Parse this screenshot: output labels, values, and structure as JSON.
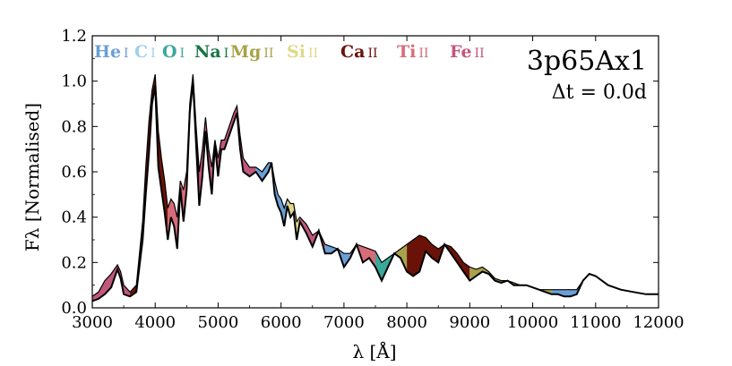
{
  "chart_data": {
    "type": "area",
    "xlabel": "λ [Å]",
    "ylabel": "Fλ [Normalised]",
    "xlim": [
      3000,
      12000
    ],
    "ylim": [
      0.0,
      1.2
    ],
    "xticks": [
      3000,
      4000,
      5000,
      6000,
      7000,
      8000,
      9000,
      10000,
      11000,
      12000
    ],
    "yticks": [
      0.0,
      0.2,
      0.4,
      0.6,
      0.8,
      1.0,
      1.2
    ],
    "xtick_labels": [
      "3000",
      "4000",
      "5000",
      "6000",
      "7000",
      "8000",
      "9000",
      "10000",
      "11000",
      "12000"
    ],
    "ytick_labels": [
      "0.0",
      "0.2",
      "0.4",
      "0.6",
      "0.8",
      "1.0",
      "1.2"
    ],
    "grid": false,
    "model_label": "3p65Ax1",
    "time_label": "Δt = 0.0d",
    "legend": [
      {
        "element": "He",
        "ion": "I",
        "color": "#6a9fd6"
      },
      {
        "element": "C",
        "ion": "I",
        "color": "#9fd0ee"
      },
      {
        "element": "O",
        "ion": "I",
        "color": "#3aa89a"
      },
      {
        "element": "Na",
        "ion": "I",
        "color": "#177544"
      },
      {
        "element": "Mg",
        "ion": "II",
        "color": "#a8a24a"
      },
      {
        "element": "Si",
        "ion": "II",
        "color": "#e0d88a"
      },
      {
        "element": "Ca",
        "ion": "II",
        "color": "#6b1208"
      },
      {
        "element": "Ti",
        "ion": "II",
        "color": "#d86b78"
      },
      {
        "element": "Fe",
        "ion": "II",
        "color": "#c0577c"
      }
    ],
    "spectrum": {
      "x": [
        3000,
        3100,
        3200,
        3300,
        3400,
        3450,
        3500,
        3600,
        3700,
        3800,
        3850,
        3900,
        3950,
        4000,
        4050,
        4100,
        4150,
        4200,
        4250,
        4300,
        4350,
        4400,
        4450,
        4500,
        4550,
        4600,
        4650,
        4700,
        4750,
        4800,
        4850,
        4900,
        4950,
        5000,
        5050,
        5100,
        5150,
        5200,
        5250,
        5300,
        5350,
        5400,
        5500,
        5600,
        5700,
        5800,
        5850,
        5900,
        5950,
        6000,
        6050,
        6100,
        6150,
        6200,
        6250,
        6300,
        6400,
        6500,
        6600,
        6700,
        6800,
        6900,
        7000,
        7100,
        7200,
        7300,
        7400,
        7500,
        7600,
        7700,
        7800,
        7900,
        8000,
        8100,
        8200,
        8300,
        8400,
        8500,
        8600,
        8700,
        8800,
        8900,
        9000,
        9100,
        9200,
        9300,
        9400,
        9500,
        9600,
        9700,
        9800,
        9900,
        10000,
        10100,
        10200,
        10300,
        10400,
        10500,
        10600,
        10700,
        10800,
        10900,
        11000,
        11200,
        11400,
        11600,
        11800,
        12000
      ],
      "y": [
        0.03,
        0.04,
        0.06,
        0.09,
        0.17,
        0.13,
        0.06,
        0.05,
        0.07,
        0.3,
        0.5,
        0.68,
        0.9,
        0.98,
        0.62,
        0.52,
        0.42,
        0.3,
        0.4,
        0.36,
        0.26,
        0.53,
        0.38,
        0.52,
        0.86,
        1.0,
        0.72,
        0.45,
        0.58,
        0.78,
        0.62,
        0.5,
        0.72,
        0.58,
        0.7,
        0.7,
        0.74,
        0.78,
        0.82,
        0.86,
        0.7,
        0.6,
        0.58,
        0.6,
        0.56,
        0.6,
        0.64,
        0.5,
        0.45,
        0.42,
        0.36,
        0.45,
        0.4,
        0.42,
        0.3,
        0.38,
        0.33,
        0.27,
        0.34,
        0.24,
        0.24,
        0.26,
        0.18,
        0.22,
        0.28,
        0.2,
        0.22,
        0.18,
        0.12,
        0.18,
        0.24,
        0.22,
        0.16,
        0.14,
        0.16,
        0.25,
        0.22,
        0.2,
        0.28,
        0.24,
        0.2,
        0.16,
        0.12,
        0.14,
        0.16,
        0.15,
        0.12,
        0.11,
        0.12,
        0.1,
        0.1,
        0.1,
        0.09,
        0.08,
        0.07,
        0.06,
        0.06,
        0.05,
        0.05,
        0.06,
        0.12,
        0.15,
        0.14,
        0.1,
        0.08,
        0.07,
        0.06,
        0.06
      ]
    },
    "no_ion_spectrum": {
      "x": [
        3000,
        3100,
        3200,
        3300,
        3400,
        3450,
        3500,
        3600,
        3700,
        3800,
        3850,
        3900,
        3950,
        4000,
        4050,
        4100,
        4150,
        4200,
        4250,
        4300,
        4350,
        4400,
        4450,
        4500,
        4550,
        4600,
        4650,
        4700,
        4750,
        4800,
        4850,
        4900,
        4950,
        5000,
        5050,
        5100,
        5150,
        5200,
        5250,
        5300,
        5350,
        5400,
        5500,
        5600,
        5700,
        5800,
        5850,
        5900,
        5950,
        6000,
        6050,
        6100,
        6150,
        6200,
        6250,
        6300,
        6400,
        6500,
        6600,
        6700,
        6800,
        6900,
        7000,
        7100,
        7200,
        7300,
        7400,
        7500,
        7600,
        7700,
        7800,
        7900,
        8000,
        8100,
        8200,
        8300,
        8400,
        8500,
        8600,
        8700,
        8800,
        8900,
        9000,
        9100,
        9200,
        9300,
        9400,
        9500,
        9600,
        9700,
        9800,
        9900,
        10000,
        10100,
        10200,
        10300,
        10400,
        10500,
        10600,
        10700,
        10800,
        10900,
        11000,
        11200,
        11400,
        11600,
        11800,
        12000
      ],
      "y": [
        0.05,
        0.07,
        0.12,
        0.15,
        0.19,
        0.16,
        0.1,
        0.07,
        0.1,
        0.38,
        0.62,
        0.82,
        0.96,
        1.03,
        0.78,
        0.66,
        0.56,
        0.44,
        0.48,
        0.46,
        0.4,
        0.56,
        0.52,
        0.6,
        0.9,
        1.03,
        0.8,
        0.6,
        0.7,
        0.84,
        0.7,
        0.62,
        0.74,
        0.66,
        0.74,
        0.74,
        0.78,
        0.82,
        0.86,
        0.89,
        0.76,
        0.66,
        0.62,
        0.62,
        0.6,
        0.64,
        0.64,
        0.56,
        0.5,
        0.48,
        0.44,
        0.48,
        0.46,
        0.46,
        0.38,
        0.4,
        0.37,
        0.32,
        0.34,
        0.28,
        0.27,
        0.26,
        0.24,
        0.24,
        0.28,
        0.27,
        0.26,
        0.25,
        0.2,
        0.22,
        0.24,
        0.26,
        0.28,
        0.3,
        0.32,
        0.31,
        0.28,
        0.26,
        0.28,
        0.27,
        0.24,
        0.2,
        0.18,
        0.17,
        0.18,
        0.16,
        0.13,
        0.12,
        0.12,
        0.11,
        0.1,
        0.1,
        0.09,
        0.08,
        0.08,
        0.08,
        0.08,
        0.08,
        0.08,
        0.08,
        0.12,
        0.15,
        0.14,
        0.1,
        0.08,
        0.07,
        0.06,
        0.06
      ]
    },
    "bands": [
      {
        "ion": "Fe II",
        "color": "#c0577c",
        "range": [
          3000,
          3600
        ]
      },
      {
        "ion": "Ca II",
        "color": "#6b1208",
        "range": [
          3600,
          4200
        ]
      },
      {
        "ion": "Ti II",
        "color": "#d86b78",
        "range": [
          4200,
          4500
        ]
      },
      {
        "ion": "Ca II",
        "color": "#6b1208",
        "range": [
          4500,
          4700
        ]
      },
      {
        "ion": "Fe II",
        "color": "#c0577c",
        "range": [
          4700,
          5600
        ]
      },
      {
        "ion": "He I",
        "color": "#6a9fd6",
        "range": [
          5600,
          6100
        ]
      },
      {
        "ion": "Si II",
        "color": "#e0d88a",
        "range": [
          6100,
          6300
        ]
      },
      {
        "ion": "Fe II",
        "color": "#c0577c",
        "range": [
          6300,
          6700
        ]
      },
      {
        "ion": "He I",
        "color": "#6a9fd6",
        "range": [
          6700,
          7100
        ]
      },
      {
        "ion": "Ti II",
        "color": "#d86b78",
        "range": [
          7100,
          7500
        ]
      },
      {
        "ion": "O I",
        "color": "#3aa89a",
        "range": [
          7500,
          7800
        ]
      },
      {
        "ion": "Mg II",
        "color": "#a8a24a",
        "range": [
          7800,
          8000
        ]
      },
      {
        "ion": "Ca II",
        "color": "#6b1208",
        "range": [
          8000,
          9000
        ]
      },
      {
        "ion": "Mg II",
        "color": "#a8a24a",
        "range": [
          9000,
          10300
        ]
      },
      {
        "ion": "He I",
        "color": "#6a9fd6",
        "range": [
          10300,
          10800
        ]
      },
      {
        "ion": "Mg II",
        "color": "#a8a24a",
        "range": [
          10800,
          12000
        ]
      }
    ]
  }
}
